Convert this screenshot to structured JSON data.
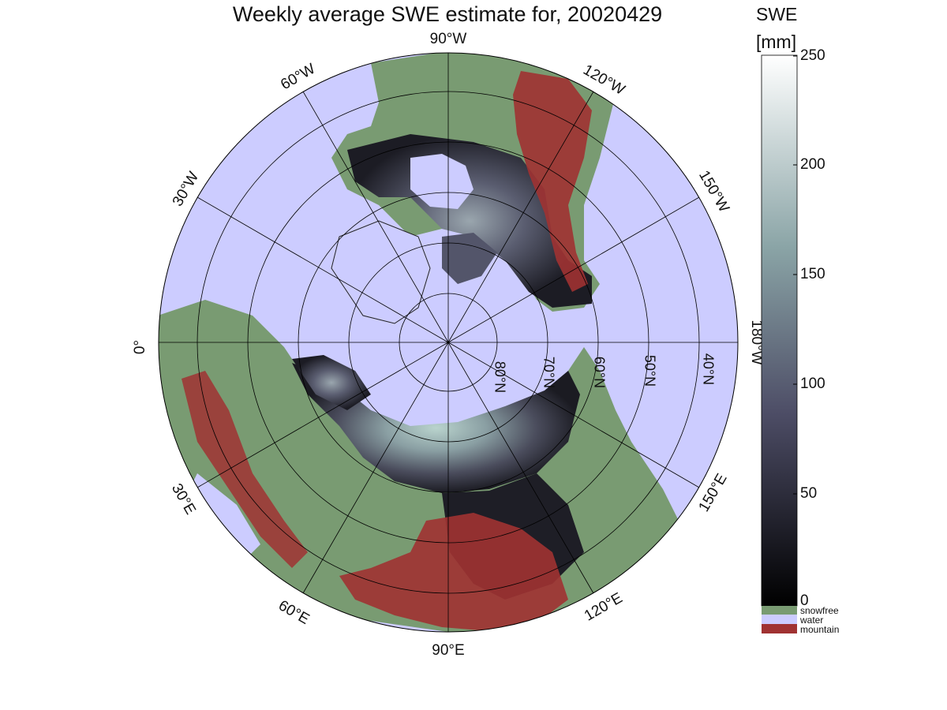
{
  "title": "Weekly average SWE estimate for, 20020429",
  "colorbar": {
    "title": "SWE",
    "unit": "[mm]",
    "ticks": [
      "250",
      "200",
      "150",
      "100",
      "50",
      "0"
    ],
    "legend": [
      {
        "label": "snowfree",
        "color": "#799b72"
      },
      {
        "label": "water",
        "color": "#ccccff"
      },
      {
        "label": "mountain",
        "color": "#a03232"
      }
    ]
  },
  "map": {
    "colors": {
      "water": "#ccccff",
      "snowfree": "#799b72",
      "mountain": "#a03232"
    },
    "longitude_labels": [
      {
        "text": "90°W"
      },
      {
        "text": "120°W"
      },
      {
        "text": "150°W"
      },
      {
        "text": "180°W"
      },
      {
        "text": "150°E"
      },
      {
        "text": "120°E"
      },
      {
        "text": "90°E"
      },
      {
        "text": "60°E"
      },
      {
        "text": "30°E"
      },
      {
        "text": "0°"
      },
      {
        "text": "30°W"
      },
      {
        "text": "60°W"
      }
    ],
    "latitude_labels": [
      "80°N",
      "70°N",
      "60°N",
      "50°N",
      "40°N"
    ]
  }
}
